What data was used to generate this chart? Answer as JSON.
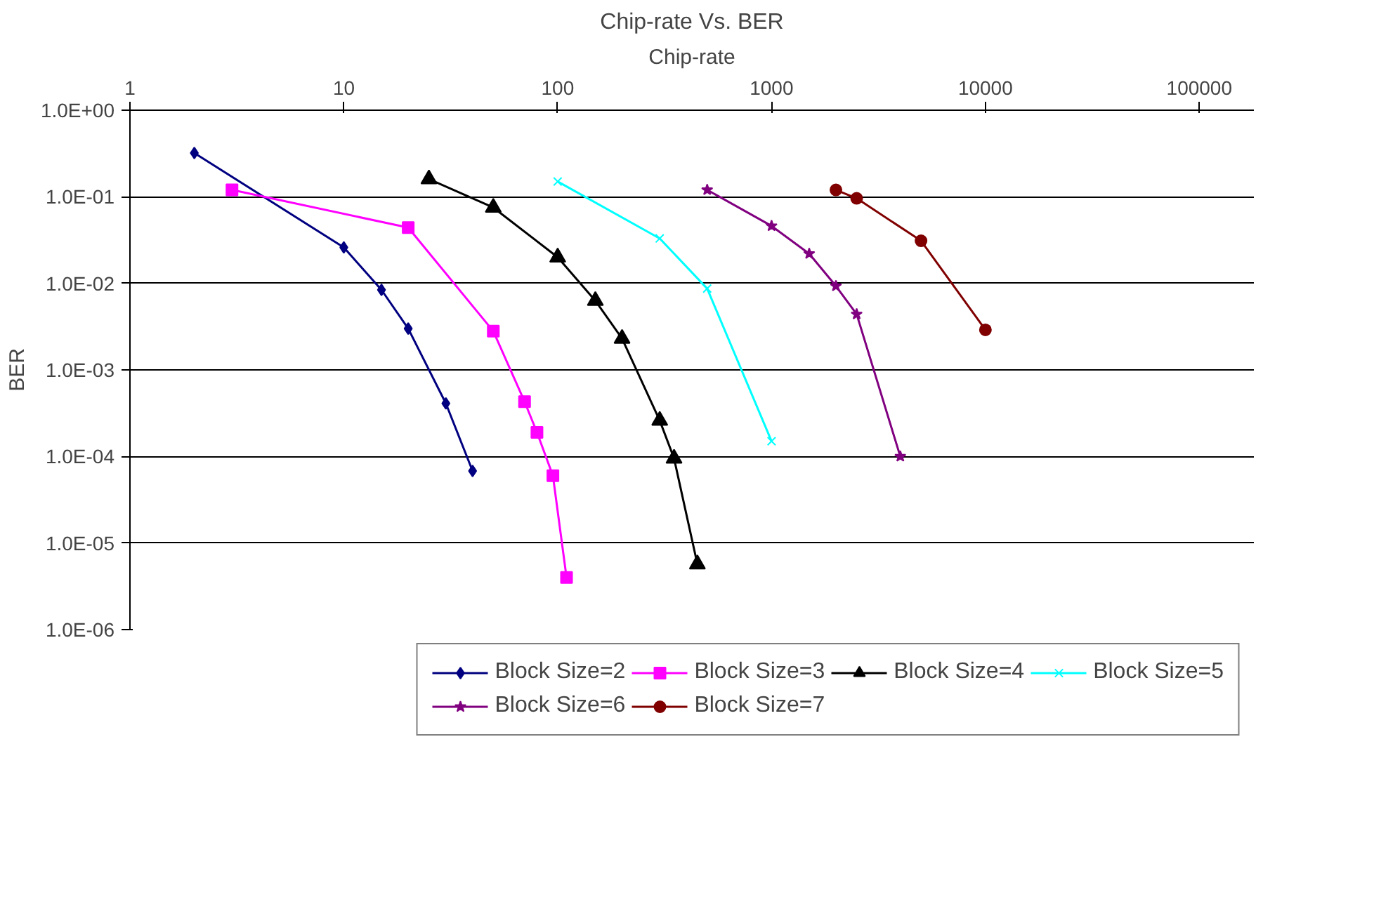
{
  "chart_data": {
    "type": "line",
    "title": "Chip-rate Vs. BER",
    "xlabel": "Chip-rate",
    "ylabel": "BER",
    "log": "xy",
    "grid": "y",
    "legend": "bottom",
    "xlim": [
      1,
      180000
    ],
    "xticks": [
      1,
      10,
      100,
      1000,
      10000,
      100000
    ],
    "ylim": [
      1e-06,
      1
    ],
    "yticks": [
      {
        "value": 1,
        "label": "1.0E+00"
      },
      {
        "value": 0.1,
        "label": "1.0E-01"
      },
      {
        "value": 0.01,
        "label": "1.0E-02"
      },
      {
        "value": 0.001,
        "label": "1.0E-03"
      },
      {
        "value": 0.0001,
        "label": "1.0E-04"
      },
      {
        "value": 1e-05,
        "label": "1.0E-05"
      },
      {
        "value": 1e-06,
        "label": "1.0E-06"
      }
    ],
    "series": [
      {
        "name": "Block Size=2",
        "color": "#000080",
        "marker": "diamond",
        "x": [
          2,
          10,
          15,
          20,
          30,
          40
        ],
        "values": [
          0.32,
          0.026,
          0.0084,
          0.003,
          0.00041,
          6.8e-05
        ]
      },
      {
        "name": "Block Size=3",
        "color": "#ff00ff",
        "marker": "square",
        "x": [
          3,
          20,
          50,
          70,
          80,
          95,
          110
        ],
        "values": [
          0.12,
          0.044,
          0.0028,
          0.00043,
          0.00019,
          6e-05,
          4e-06
        ]
      },
      {
        "name": "Block Size=4",
        "color": "#000000",
        "marker": "triangle",
        "x": [
          25,
          50,
          100,
          150,
          200,
          300,
          350,
          450
        ],
        "values": [
          0.16,
          0.075,
          0.02,
          0.0063,
          0.0023,
          0.00026,
          9.5e-05,
          5.7e-06
        ]
      },
      {
        "name": "Block Size=5",
        "color": "#00ffff",
        "marker": "cross",
        "x": [
          100,
          300,
          500,
          1000
        ],
        "values": [
          0.15,
          0.033,
          0.0087,
          0.00015
        ]
      },
      {
        "name": "Block Size=6",
        "color": "#800080",
        "marker": "star",
        "x": [
          500,
          1000,
          1500,
          2000,
          2500,
          4000
        ],
        "values": [
          0.12,
          0.046,
          0.022,
          0.0093,
          0.0044,
          0.0001
        ]
      },
      {
        "name": "Block Size=7",
        "color": "#800000",
        "marker": "circle",
        "x": [
          2000,
          2500,
          5000,
          10000
        ],
        "values": [
          0.12,
          0.096,
          0.031,
          0.0029
        ]
      }
    ]
  }
}
